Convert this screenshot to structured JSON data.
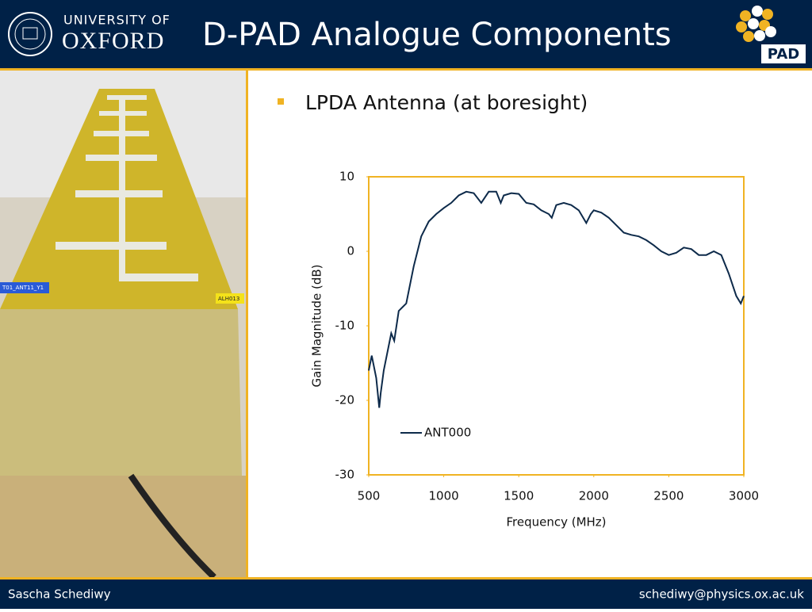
{
  "header": {
    "university": "UNIVERSITY OF",
    "oxford": "OXFORD",
    "title": "D-PAD Analogue Components",
    "logo": "PAD"
  },
  "photo_labels": [
    "T01_ANT11_Y1",
    "ALH013"
  ],
  "bullet": "LPDA Antenna (at boresight)",
  "chart_data": {
    "type": "line",
    "x_label": "Frequency (MHz)",
    "y_label": "Gain Magnitude (dB)",
    "xlim": [
      500,
      3000
    ],
    "ylim": [
      -30,
      10
    ],
    "xticks": [
      500,
      1000,
      1500,
      2000,
      2500,
      3000
    ],
    "yticks": [
      -30,
      -20,
      -10,
      0,
      10
    ],
    "grid": false,
    "legend": "lower left",
    "x": [
      500,
      520,
      550,
      570,
      580,
      600,
      620,
      650,
      670,
      700,
      750,
      780,
      800,
      850,
      900,
      950,
      1000,
      1050,
      1100,
      1150,
      1200,
      1250,
      1300,
      1350,
      1380,
      1400,
      1450,
      1500,
      1550,
      1600,
      1650,
      1700,
      1720,
      1750,
      1800,
      1850,
      1900,
      1950,
      1980,
      2000,
      2050,
      2100,
      2150,
      2200,
      2250,
      2300,
      2350,
      2400,
      2450,
      2500,
      2550,
      2600,
      2650,
      2700,
      2750,
      2800,
      2850,
      2900,
      2950,
      2980,
      3000
    ],
    "series": [
      {
        "name": "ANT000",
        "color": "#0d2a4a",
        "values": [
          -16,
          -14,
          -17,
          -21,
          -19,
          -16,
          -14,
          -11,
          -12,
          -8,
          -7,
          -4,
          -2,
          2,
          4,
          5,
          5.8,
          6.5,
          7.5,
          8,
          7.8,
          6.5,
          8,
          8,
          6.5,
          7.5,
          7.8,
          7.7,
          6.5,
          6.3,
          5.5,
          5,
          4.5,
          6.2,
          6.5,
          6.2,
          5.5,
          3.8,
          5,
          5.5,
          5.2,
          4.5,
          3.5,
          2.5,
          2.2,
          2,
          1.5,
          0.8,
          0,
          -0.5,
          -0.2,
          0.5,
          0.3,
          -0.5,
          -0.5,
          0,
          -0.5,
          -3,
          -6,
          -7,
          -6
        ]
      }
    ]
  },
  "footer": {
    "left": "Sascha Schediwy",
    "right": "schediwy@physics.ox.ac.uk"
  }
}
